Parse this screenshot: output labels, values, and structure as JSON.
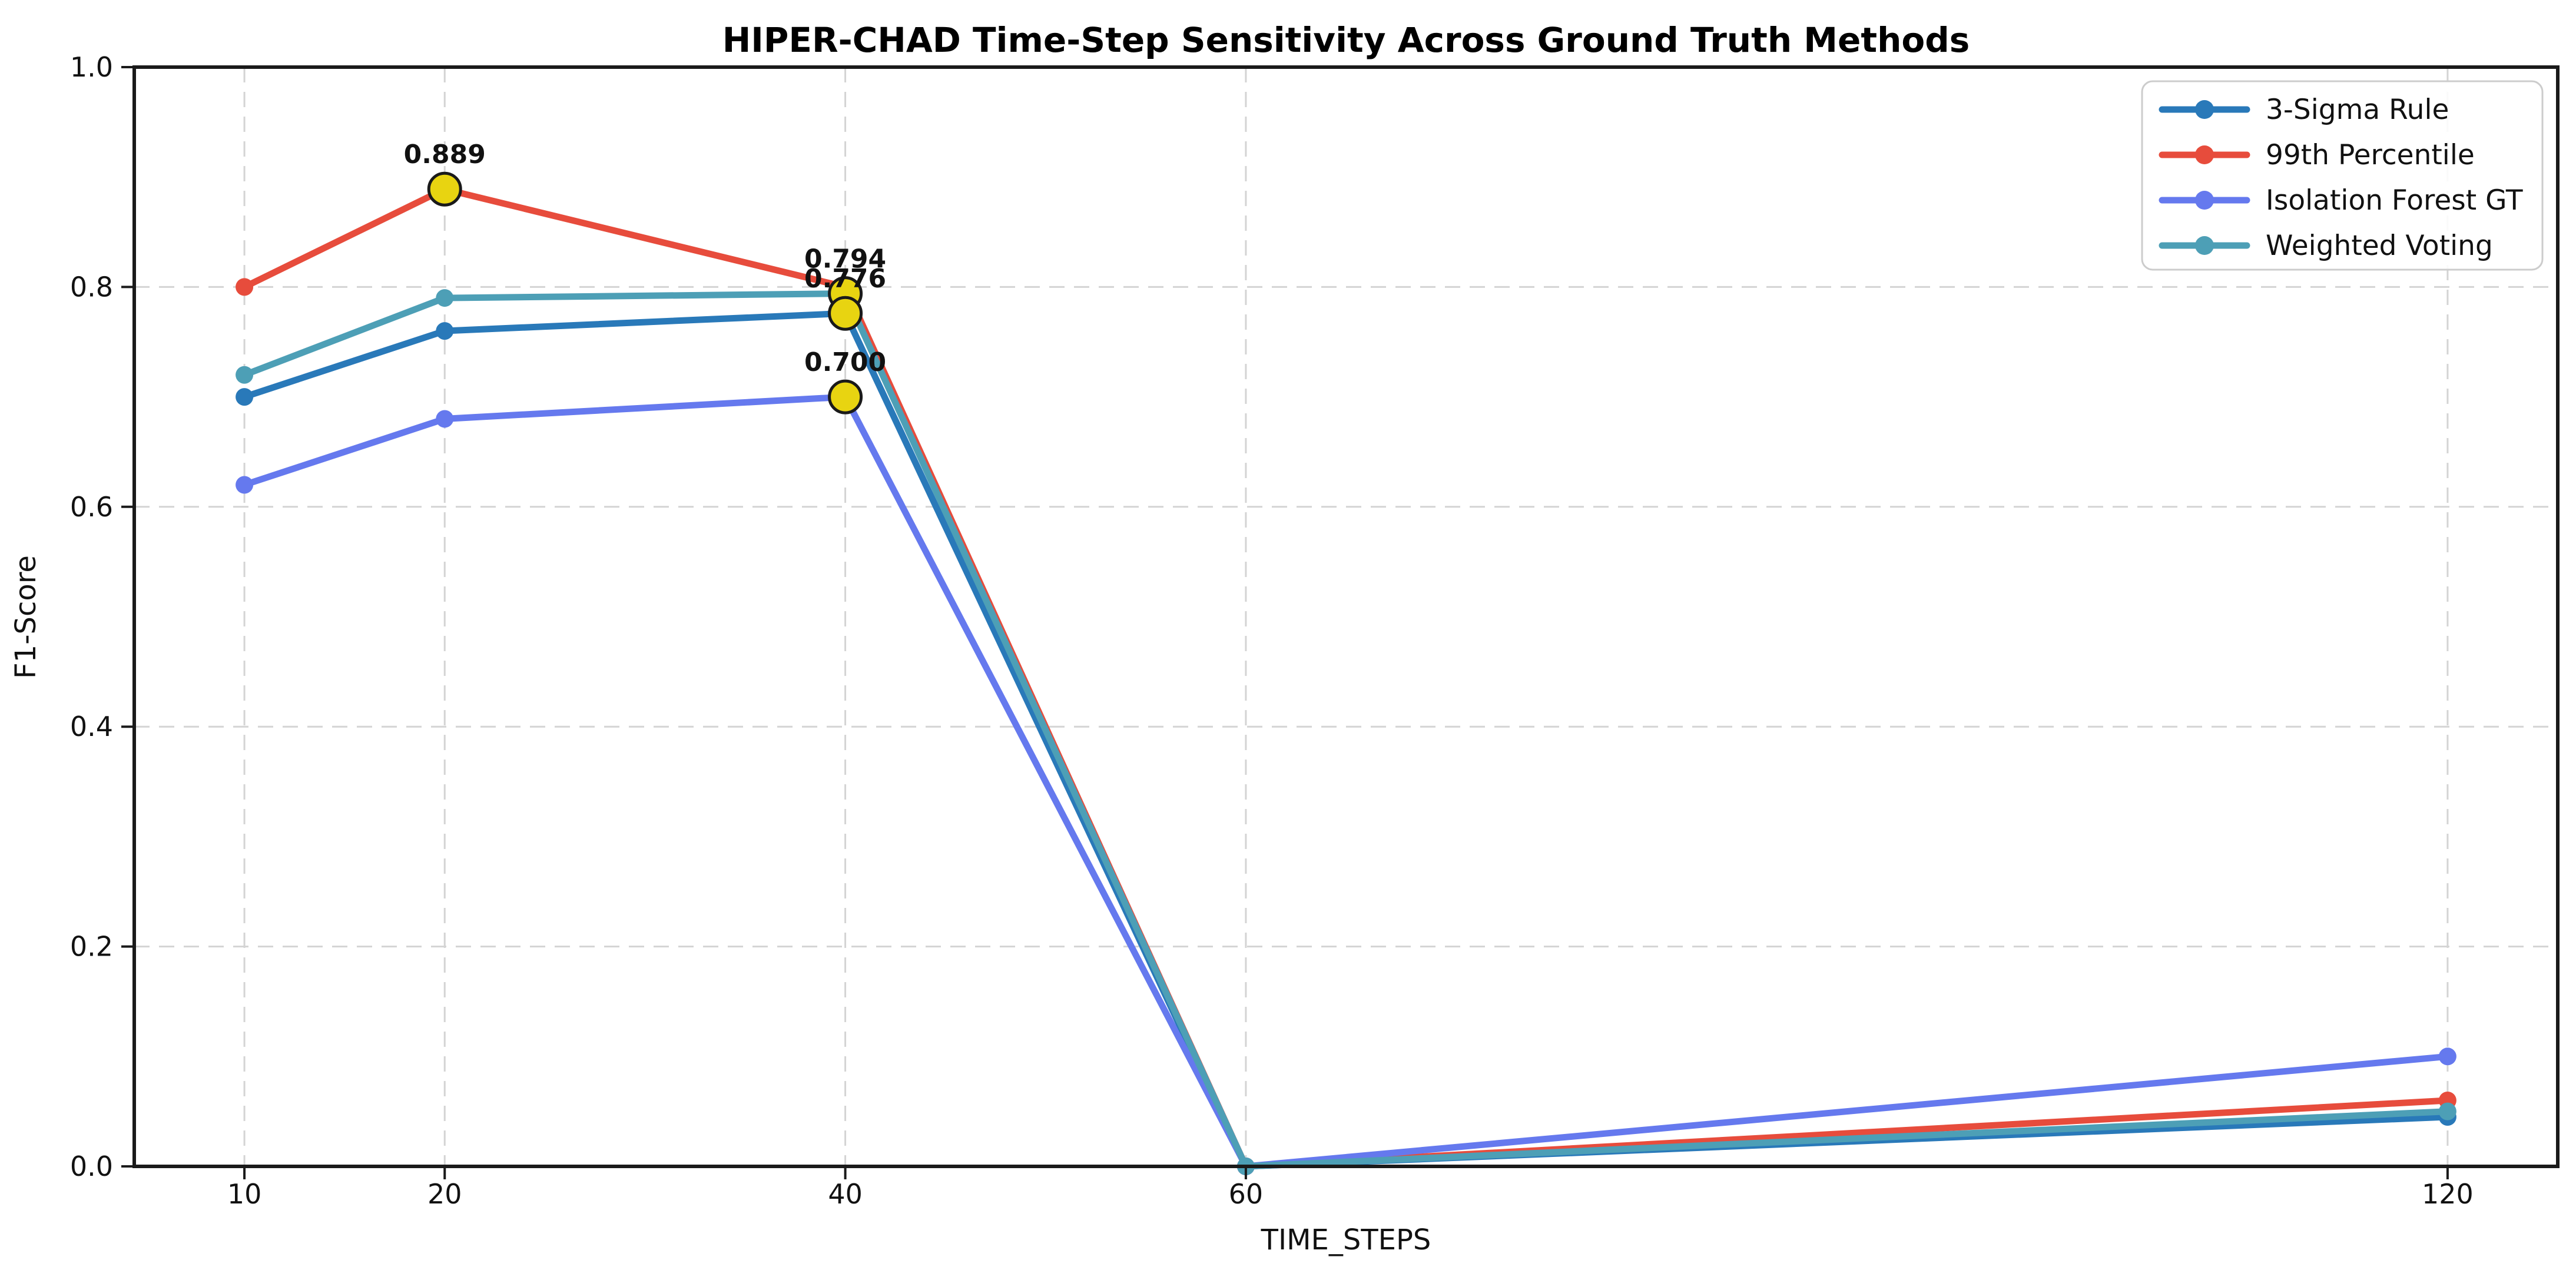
{
  "chart_data": {
    "type": "line",
    "title": "HIPER-CHAD Time-Step Sensitivity Across Ground Truth Methods",
    "xlabel": "TIME_STEPS",
    "ylabel": "F1-Score",
    "xlim": [
      4.5,
      125.5
    ],
    "ylim": [
      0.0,
      1.0
    ],
    "grid": "dashed-both-axes",
    "legend_position": "upper-right",
    "x": [
      10,
      20,
      40,
      60,
      120
    ],
    "xticks": [
      {
        "value": 10,
        "label": "10"
      },
      {
        "value": 20,
        "label": "20"
      },
      {
        "value": 40,
        "label": "40"
      },
      {
        "value": 60,
        "label": "60"
      },
      {
        "value": 120,
        "label": "120"
      }
    ],
    "yticks": [
      {
        "value": 0.0,
        "label": "0.0"
      },
      {
        "value": 0.2,
        "label": "0.2"
      },
      {
        "value": 0.4,
        "label": "0.4"
      },
      {
        "value": 0.6,
        "label": "0.6"
      },
      {
        "value": 0.8,
        "label": "0.8"
      },
      {
        "value": 1.0,
        "label": "1.0"
      }
    ],
    "series": [
      {
        "name": "3-Sigma Rule",
        "color": "#2979b9",
        "values": [
          0.7,
          0.76,
          0.776,
          0.0,
          0.045
        ]
      },
      {
        "name": "99th Percentile",
        "color": "#e74c3c",
        "values": [
          0.8,
          0.889,
          0.8,
          0.0,
          0.06
        ]
      },
      {
        "name": "Isolation Forest GT",
        "color": "#6579ee",
        "values": [
          0.62,
          0.68,
          0.7,
          0.0,
          0.1
        ]
      },
      {
        "name": "Weighted Voting",
        "color": "#4d9fb6",
        "values": [
          0.72,
          0.79,
          0.794,
          0.0,
          0.05
        ]
      }
    ],
    "annotations": [
      {
        "x": 20,
        "y": 0.889,
        "label": "0.889"
      },
      {
        "x": 40,
        "y": 0.794,
        "label": "0.794"
      },
      {
        "x": 40,
        "y": 0.776,
        "label": "0.776"
      },
      {
        "x": 40,
        "y": 0.7,
        "label": "0.700"
      }
    ],
    "highlight_marker": {
      "fill": "#e8d411",
      "edge": "#1a1a1a"
    }
  }
}
